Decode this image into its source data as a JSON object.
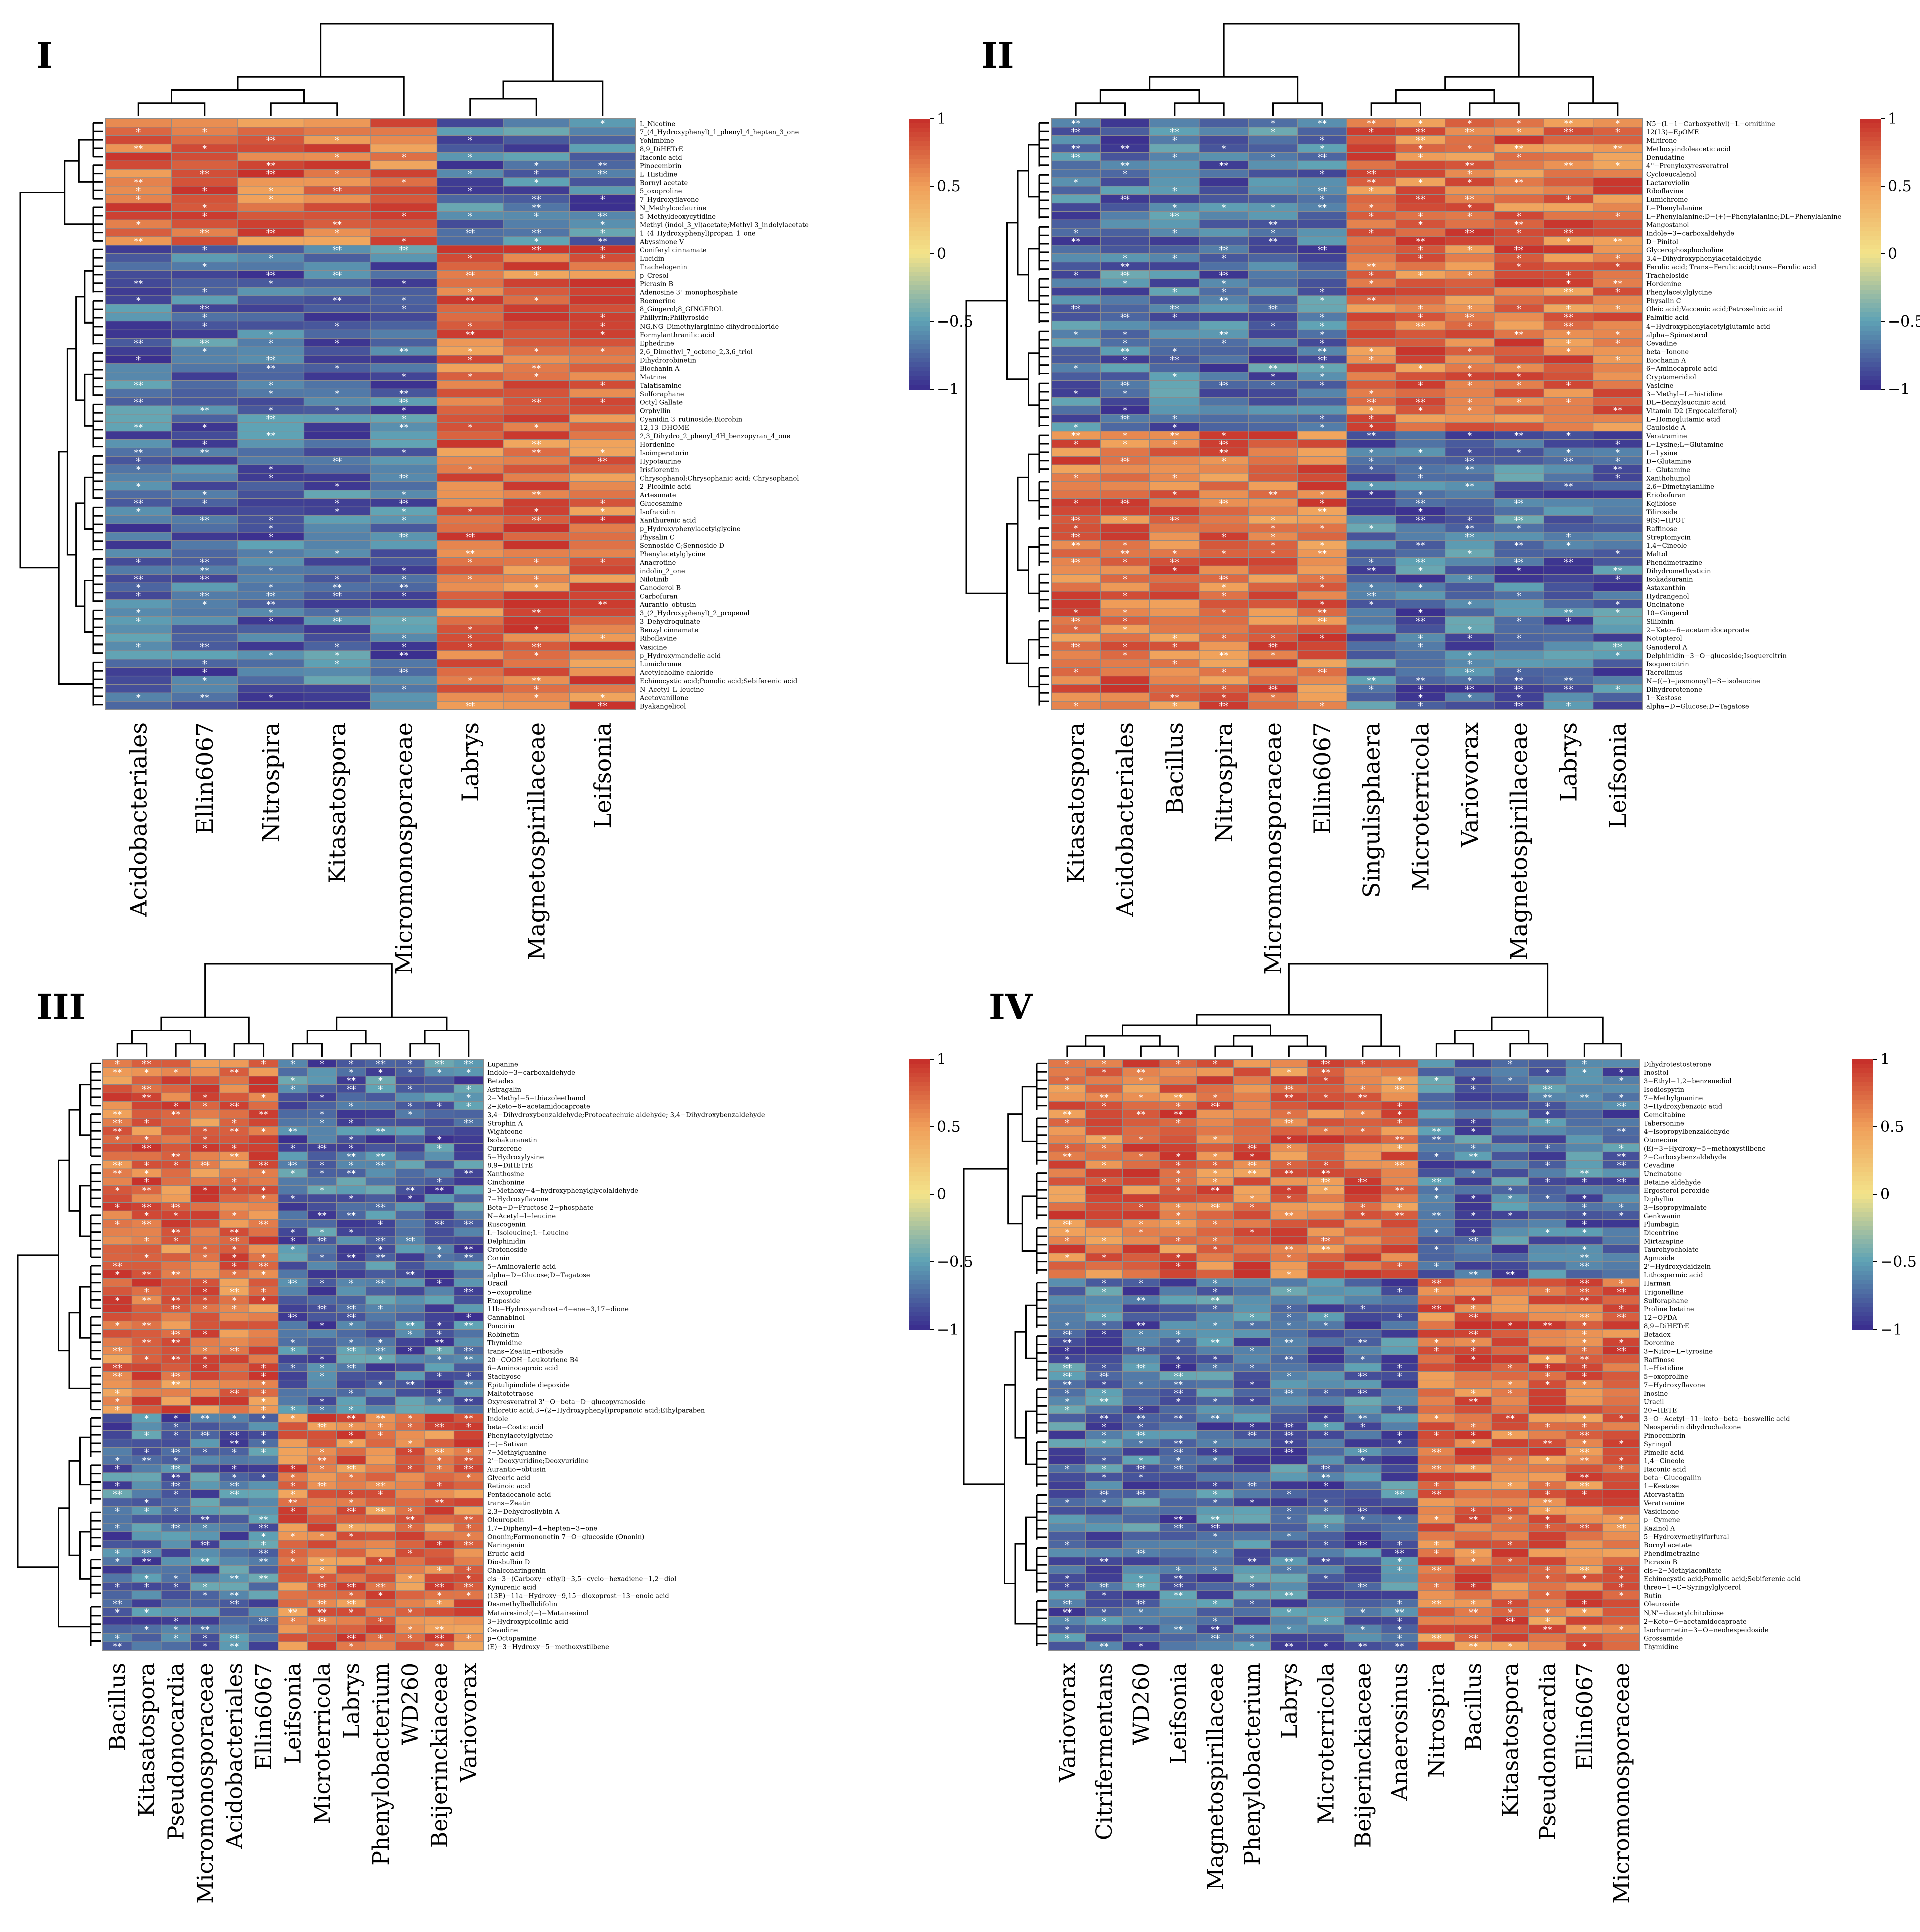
{
  "colors": {
    "low": "#3b2f8f",
    "mid_low": "#5fa3b5",
    "mid": "#f3e38a",
    "mid_high": "#f0a05a",
    "high": "#c7312b",
    "border": "#8c8c8c",
    "star": "#ffffff"
  },
  "chart_data": [
    {
      "type": "heatmap",
      "title": "I",
      "legend": {
        "ticks": [
          "1",
          "0.5",
          "0",
          "−0.5",
          "−1"
        ],
        "range": [
          -1,
          1
        ]
      },
      "columns": [
        "Acidobacteriales",
        "Ellin6067",
        "Nitrospira",
        "Kitasatospora",
        "Micromonosporaceae",
        "Labrys",
        "Magnetospirillaceae",
        "Leifsonia"
      ],
      "rows": [
        "L_Nicotine",
        "7_(4_Hydroxyphenyl)_1_phenyl_4_hepten_3_one",
        "Yohimbine",
        "8,9_DiHETrE",
        "Itaconic acid",
        "Pinocembrin",
        "L_Histidine",
        "Bornyl acetate",
        "5_oxoproline",
        "7_Hydroxyflavone",
        "N_Methylcoclaurine",
        "5_Methyldeoxycytidine",
        "Methyl (indol_3_yl)acetate;Methyl 3_indolylacetate",
        "1_(4_Hydroxyphenyl)propan_1_one",
        "Abyssinone V",
        "Coniferyl cinnamate",
        "Lucidin",
        "Trachelogenin",
        "p_Cresol",
        "Picrasin B",
        "Adenosine 3'_monophosphate",
        "Roemerine",
        "8_Gingerol;8_GINGEROL",
        "Phillyrin;Phillyroside",
        "NG,NG_Dimethylarginine dihydrochloride",
        "Formylanthranilic acid",
        "Ephedrine",
        "2,6_Dimethyl_7_octene_2,3,6_triol",
        "Dihydrorobinetin",
        "Biochanin A",
        "Matrine",
        "Talatisamine",
        "Sulforaphane",
        "Octyl Gallate",
        "Orphyllin",
        "Cyanidin 3_rutinoside;Biorobin",
        "12,13_DHOME",
        "2,3_Dihydro_2_phenyl_4H_benzopyran_4_one",
        "Hordenine",
        "Isoimperatorin",
        "Hypotaurine",
        "Irisflorentin",
        "Chrysophanol;Chrysophanic acid; Chrysophanol",
        "2_Picolinic acid",
        "Artesunate",
        "Glucosamine",
        "Isofraxidin",
        "Xanthurenic acid",
        "p_Hydroxyphenylacetylglycine",
        "Physalin C",
        "Sennoside C;Sennoside D",
        "Phenylacetylglycine",
        "Anacrotine",
        "indolin_2_one",
        "Nilotinib",
        "Ganoderol B",
        "Carbofuran",
        "Aurantio_obtusin",
        "3_(2_Hydroxyphenyl)_2_propenal",
        "3_Dehydroquinate",
        "Benzyl cinnamate",
        "Riboflavine",
        "Vasicine",
        "p_Hydroxymandelic acid",
        "Lumichrome",
        "Acetylcholine chloride",
        "Echinocystic acid;Pomolic acid;Sebiferenic acid",
        "N_Acetyl_L_leucine",
        "Acetovanillone",
        "Byakangelicol"
      ]
    },
    {
      "type": "heatmap",
      "title": "II",
      "legend": {
        "ticks": [
          "1",
          "0.5",
          "0",
          "−0.5",
          "−1"
        ],
        "range": [
          -1,
          1
        ]
      },
      "columns": [
        "Kitasatospora",
        "Acidobacteriales",
        "Bacillus",
        "Nitrospira",
        "Micromonosporaceae",
        "Ellin6067",
        "Singulisphaera",
        "Microterricola",
        "Variovorax",
        "Magnetospirillaceae",
        "Labrys",
        "Leifsonia"
      ],
      "rows": [
        "N5−(L−1−Carboxyethyl)−L−ornithine",
        "12(13)−EpOME",
        "Miltirone",
        "Methoxyindoleacetic acid",
        "Denudatine",
        "4''−Prenyloxyresveratrol",
        "Cycloeucalenol",
        "Lactaroviolin",
        "Riboflavine",
        "Lumichrome",
        "L−Phenylalanine",
        "L−Phenylalanine;D−(+)−Phenylalanine;DL−Phenylalanine",
        "Mangostanol",
        "Indole−3−carboxaldehyde",
        "D−Pinitol",
        "Glycerophosphocholine",
        "3,4−Dihydroxyphenylacetaldehyde",
        "Ferulic acid; Trans−Ferulic acid;trans−Ferulic acid",
        "Tracheloside",
        "Hordenine",
        "Phenylacetylglycine",
        "Physalin C",
        "Oleic acid;Vaccenic acid;Petroselinic acid",
        "Palmitic acid",
        "4−Hydroxyphenylacetylglutamic acid",
        "alpha−Spinasterol",
        "Cevadine",
        "beta−Ionone",
        "Biochanin A",
        "6−Aminocaproic acid",
        "Cryptomeridiol",
        "Vasicine",
        "3−Methyl−L−histidine",
        "DL−Benzylsuccinic acid",
        "Vitamin D2 (Ergocalciferol)",
        "L−Homoglutamic acid",
        "Cauloside A",
        "Veratramine",
        "L−Lysine;L−Glutamine",
        "L−Lysine",
        "D−Glutamine",
        "L−Glutamine",
        "Xanthohumol",
        "2,6−Dimethylaniline",
        "Eriobofuran",
        "Kojibiose",
        "Tiliroside",
        "9(S)−HPOT",
        "Raffinose",
        "Streptomycin",
        "1,4−Cineole",
        "Maltol",
        "Phendimetrazine",
        "Dihydromethysticin",
        "Isokadsuranin",
        "Astaxanthin",
        "Hydrangenol",
        "Uncinatone",
        "10−Gingerol",
        "Silibinin",
        "2−Keto−6−acetamidocaproate",
        "Notopterol",
        "Ganoderol A",
        "Delphinidin−3−O−glucoside;Isoquercitrin",
        "Isoquercitrin",
        "Tacrolimus",
        "N−((−)−jasmonoyl)−S−isoleucine",
        "Dihydrorotenone",
        "1−Kestose",
        "alpha−D−Glucose;D−Tagatose"
      ]
    },
    {
      "type": "heatmap",
      "title": "III",
      "legend": {
        "ticks": [
          "1",
          "0.5",
          "0",
          "−0.5",
          "−1"
        ],
        "range": [
          -1,
          1
        ]
      },
      "columns": [
        "Bacillus",
        "Kitasatospora",
        "Pseudonocardia",
        "Micromonosporaceae",
        "Acidobacteriales",
        "Ellin6067",
        "Leifsonia",
        "Microterricola",
        "Labrys",
        "Phenylobacterium",
        "WD260",
        "Beijerinckiaceae",
        "Variovorax"
      ],
      "rows": [
        "Lupanine",
        "Indole−3−carboxaldehyde",
        "Betadex",
        "Astragalin",
        "2−Methyl−5−thiazoleethanol",
        "2−Keto−6−acetamidocaproate",
        "3,4−Dihydroxybenzaldehyde;Protocatechuic aldehyde; 3,4−Dihydroxybenzaldehyde",
        "Strophin A",
        "Wighteone",
        "Isobakuranetin",
        "Curzerene",
        "5−Hydroxylysine",
        "8,9−DiHETrE",
        "Xanthosine",
        "Cinchonine",
        "3−Methoxy−4−hydroxyphenylglycolaldehyde",
        "7−Hydroxyflavone",
        "Beta−D−Fructose 2−phosphate",
        "N−Acetyl−l−leucine",
        "Ruscogenin",
        "L−Isoleucine;L−Leucine",
        "Delphinidin",
        "Crotonoside",
        "Cornin",
        "5−Aminovaleric acid",
        "alpha−D−Glucose;D−Tagatose",
        "Uracil",
        "5−oxoproline",
        "Etoposide",
        "11b−Hydroxyandrost−4−ene−3,17−dione",
        "Cannabinol",
        "Poncirin",
        "Robinetin",
        "Thymidine",
        "trans−Zeatin−riboside",
        "20−COOH−Leukotriene B4",
        "6−Aminocaproic acid",
        "Stachyose",
        "Epitulipinolide diepoxide",
        "Maltotetraose",
        "Oxyresveratrol 3'−O−beta−D−glucopyranoside",
        "Phloretic acid;3−(2−Hydroxyphenyl)propanoic acid;Ethylparaben",
        "Indole",
        "beta−Costic acid",
        "Phenylacetylglycine",
        "(−)−Sativan",
        "7−Methylguanine",
        "2'−Deoxyuridine;Deoxyuridine",
        "Aurantio−obtusin",
        "Glyceric acid",
        "Retinoic acid",
        "Pentadecanoic acid",
        "trans−Zeatin",
        "2,3−Dehydrosilybin A",
        "Oleuropein",
        "1,7−Diphenyl−4−hepten−3−one",
        "Ononin;Formononetin 7−O−glucoside (Ononin)",
        "Naringenin",
        "Erucic acid",
        "Diosbulbin D",
        "Chalconaringenin",
        "cis−3−(Carboxy−ethyl)−3,5−cyclo−hexadiene−1,2−diol",
        "Kynurenic acid",
        "(13E)−11a−Hydroxy−9,15−dioxoprost−13−enoic acid",
        "Desmethylbellidifolin",
        "Matairesinol;(−)−Matairesinol",
        "3−Hydroxypicolinic acid",
        "Cevadine",
        "p−Octopamine",
        "(E)−3−Hydroxy−5−methoxystilbene"
      ]
    },
    {
      "type": "heatmap",
      "title": "IV",
      "legend": {
        "ticks": [
          "1",
          "0.5",
          "0",
          "−0.5",
          "−1"
        ],
        "range": [
          -1,
          1
        ]
      },
      "columns": [
        "Variovorax",
        "Citrifermentans",
        "WD260",
        "Leifsonia",
        "Magnetospirillaceae",
        "Phenylobacterium",
        "Labrys",
        "Microterricola",
        "Beijerinckiaceae",
        "Anaerosinus",
        "Nitrospira",
        "Bacillus",
        "Kitasatospora",
        "Pseudonocardia",
        "Ellin6067",
        "Micromonosporaceae"
      ],
      "rows": [
        "Dihydrotestosterone",
        "Inositol",
        "3−Ethyl−1,2−benzenediol",
        "Isodiospyrin",
        "7−Methylguanine",
        "3−Hydroxybenzoic acid",
        "Gemcitabine",
        "Tabersonine",
        "4−Isopropylbenzaldehyde",
        "Otonecine",
        "(E)−3−Hydroxy−5−methoxystilbene",
        "2−Carboxybenzaldehyde",
        "Cevadine",
        "Uncinatone",
        "Betaine aldehyde",
        "Ergosterol peroxide",
        "Diphyllin",
        "3−Isopropylmalate",
        "Genkwanin",
        "Plumbagin",
        "Dicentrine",
        "Mirtazapine",
        "Taurohyocholate",
        "Agnuside",
        "2'−Hydroxydaidzein",
        "Lithospermic acid",
        "Harman",
        "Trigonelline",
        "Sulforaphane",
        "Proline betaine",
        "12−OPDA",
        "8,9−DiHETrE",
        "Betadex",
        "Doronine",
        "3−Nitro−L−tyrosine",
        "Raffinose",
        "L−Histidine",
        "5−oxoproline",
        "7−Hydroxyflavone",
        "Inosine",
        "Uracil",
        "20−HETE",
        "3−O−Acetyl−11−keto−beta−boswellic acid",
        "Neosperidin dihydrochalcone",
        "Pinocembrin",
        "Syringol",
        "Pimelic acid",
        "1,4−Cineole",
        "Itaconic acid",
        "beta−Glucogallin",
        "1−Kestose",
        "Atorvastatin",
        "Veratramine",
        "Vasicinone",
        "p−Cymene",
        "Kazinol A",
        "5−Hydroxymethylfurfural",
        "Bornyl acetate",
        "Phendimetrazine",
        "Picrasin B",
        "cis−2−Methylaconitate",
        "Echinocystic acid;Pomolic acid;Sebiferenic acid",
        "threo−1−C−Syringylglycerol",
        "Rutin",
        "Oleuroside",
        "N,N'−diacetylchitobiose",
        "2−Keto−6−acetamidocaproate",
        "Isorhamnetin−3−O−neohespeidoside",
        "Grossamide",
        "Thymidine"
      ]
    }
  ]
}
